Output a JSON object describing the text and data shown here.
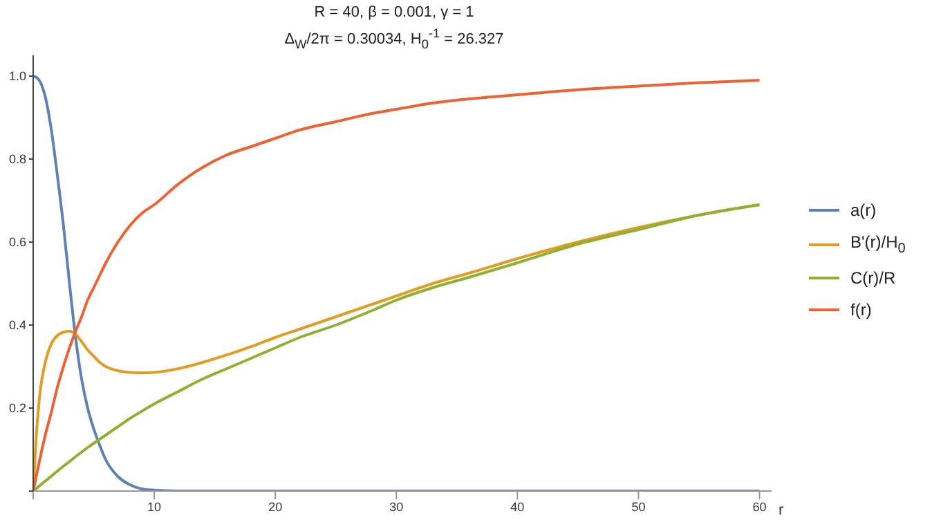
{
  "chart_data": {
    "type": "line",
    "title": "R = 40, β = 0.001, γ = 1",
    "subtitle": "Δ$_{W}$/2π = 0.30034,  H$_{0}$$^{-1}$ = 26.327",
    "xlabel": "r",
    "x": [
      0,
      0.25,
      0.5,
      1,
      1.5,
      2,
      2.5,
      3,
      3.5,
      4,
      4.5,
      5,
      5.5,
      6,
      7,
      8,
      9,
      10,
      12,
      14,
      16,
      18,
      20,
      22,
      25,
      28,
      30,
      33,
      36,
      40,
      45,
      50,
      55,
      60
    ],
    "series": [
      {
        "name": "a(r)",
        "color": "#5e81b5",
        "values": [
          1,
          0.997,
          0.99,
          0.95,
          0.87,
          0.76,
          0.64,
          0.5,
          0.37,
          0.27,
          0.2,
          0.15,
          0.11,
          0.075,
          0.035,
          0.015,
          0.005,
          0.002,
          0,
          0,
          0,
          0,
          0,
          0,
          0,
          0,
          0,
          0,
          0,
          0,
          0,
          0,
          0,
          0
        ]
      },
      {
        "name": "B'(r)/H$_{0}$",
        "color": "#e19c24",
        "values": [
          0,
          0.13,
          0.22,
          0.31,
          0.355,
          0.375,
          0.383,
          0.385,
          0.378,
          0.36,
          0.34,
          0.325,
          0.31,
          0.3,
          0.29,
          0.286,
          0.285,
          0.286,
          0.295,
          0.31,
          0.328,
          0.348,
          0.37,
          0.39,
          0.42,
          0.45,
          0.47,
          0.5,
          0.525,
          0.56,
          0.6,
          0.635,
          0.665,
          0.69
        ]
      },
      {
        "name": "C(r)/R",
        "color": "#8fb032",
        "values": [
          0,
          0.006,
          0.012,
          0.024,
          0.036,
          0.048,
          0.06,
          0.071,
          0.083,
          0.094,
          0.105,
          0.115,
          0.125,
          0.135,
          0.155,
          0.175,
          0.193,
          0.21,
          0.24,
          0.27,
          0.295,
          0.32,
          0.345,
          0.37,
          0.4,
          0.435,
          0.46,
          0.49,
          0.515,
          0.55,
          0.595,
          0.63,
          0.665,
          0.69
        ]
      },
      {
        "name": "f(r)",
        "color": "#eb6235",
        "values": [
          0,
          0.035,
          0.07,
          0.135,
          0.19,
          0.25,
          0.3,
          0.345,
          0.385,
          0.42,
          0.46,
          0.49,
          0.52,
          0.55,
          0.6,
          0.64,
          0.67,
          0.69,
          0.74,
          0.78,
          0.81,
          0.83,
          0.85,
          0.87,
          0.89,
          0.91,
          0.92,
          0.935,
          0.945,
          0.955,
          0.967,
          0.976,
          0.984,
          0.99
        ]
      }
    ],
    "xlim": [
      0,
      61
    ],
    "ylim": [
      0,
      1.05
    ],
    "xticks": [
      {
        "value": 0,
        "label": null
      },
      10,
      20,
      30,
      40,
      50,
      60
    ],
    "yticks": [
      {
        "value": 0,
        "label": null
      },
      0.2,
      0.4,
      0.6,
      0.8,
      {
        "value": 1,
        "label": "1.0"
      }
    ],
    "grid": false,
    "legend": "right",
    "marker": "none",
    "line_style": "solid"
  }
}
